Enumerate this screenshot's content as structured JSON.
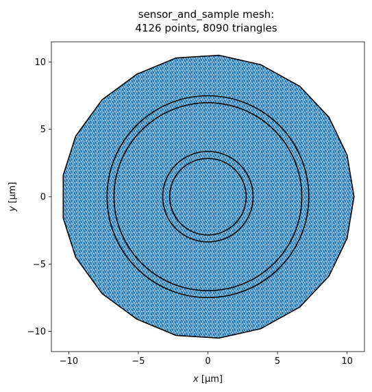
{
  "chart_data": {
    "type": "scatter",
    "title_line1": "sensor_and_sample mesh:",
    "title_line2": "4126 points, 8090 triangles",
    "xlabel": {
      "var": "x",
      "unit": " [µm]"
    },
    "ylabel": {
      "var": "y",
      "unit": " [µm]"
    },
    "xlim": [
      -11.25,
      11.25
    ],
    "ylim": [
      -11.5,
      11.5
    ],
    "xticks": [
      -10,
      -5,
      0,
      5,
      10
    ],
    "xtick_labels": [
      "−10",
      "−5",
      "0",
      "5",
      "10"
    ],
    "yticks": [
      -10,
      -5,
      0,
      5,
      10
    ],
    "ytick_labels": [
      "−10",
      "−5",
      "0",
      "5",
      "10"
    ],
    "grid": false,
    "mesh": {
      "points": 4126,
      "triangles": 8090,
      "fill_color": "#1f77b4",
      "edge_color": "#ffffff"
    },
    "outer_boundary": [
      [
        10.5,
        0.0
      ],
      [
        10.0,
        3.1
      ],
      [
        8.7,
        5.9
      ],
      [
        6.6,
        8.2
      ],
      [
        3.8,
        9.8
      ],
      [
        0.8,
        10.5
      ],
      [
        -2.3,
        10.3
      ],
      [
        -5.1,
        9.1
      ],
      [
        -7.6,
        7.2
      ],
      [
        -9.5,
        4.5
      ],
      [
        -10.4,
        1.6
      ],
      [
        -10.4,
        -1.6
      ],
      [
        -9.5,
        -4.5
      ],
      [
        -7.6,
        -7.2
      ],
      [
        -5.1,
        -9.1
      ],
      [
        -2.3,
        -10.3
      ],
      [
        0.8,
        -10.5
      ],
      [
        3.8,
        -9.8
      ],
      [
        6.6,
        -8.2
      ],
      [
        8.7,
        -5.9
      ],
      [
        10.0,
        -3.1
      ]
    ],
    "circles": [
      {
        "r": 7.25
      },
      {
        "r": 6.75
      },
      {
        "r": 3.25
      },
      {
        "r": 2.75
      }
    ],
    "boundary_color": "#000000"
  }
}
